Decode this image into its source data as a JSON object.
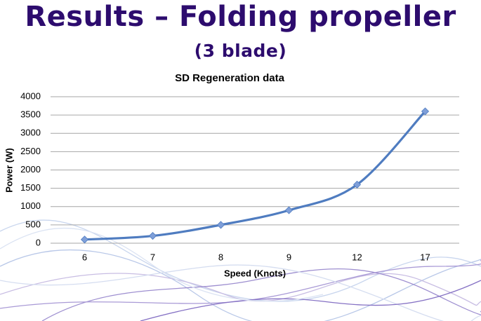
{
  "slide": {
    "title": "Results – Folding propeller",
    "title_note": "(3 blade)"
  },
  "chart_data": {
    "type": "line",
    "title": "SD Regeneration data",
    "x_label": "Speed (Knots)",
    "y_label": "Power (W)",
    "categories": [
      "6",
      "7",
      "8",
      "9",
      "12",
      "17"
    ],
    "series": [
      {
        "name": "Power",
        "color": "#4f7cc0",
        "marker_color": "#7f9fd9",
        "values": [
          100,
          200,
          500,
          900,
          1600,
          3600
        ]
      }
    ],
    "ylim": [
      0,
      4000
    ],
    "yticks": [
      0,
      500,
      1000,
      1500,
      2000,
      2500,
      3000,
      3500,
      4000
    ],
    "grid": true,
    "smooth": true
  }
}
